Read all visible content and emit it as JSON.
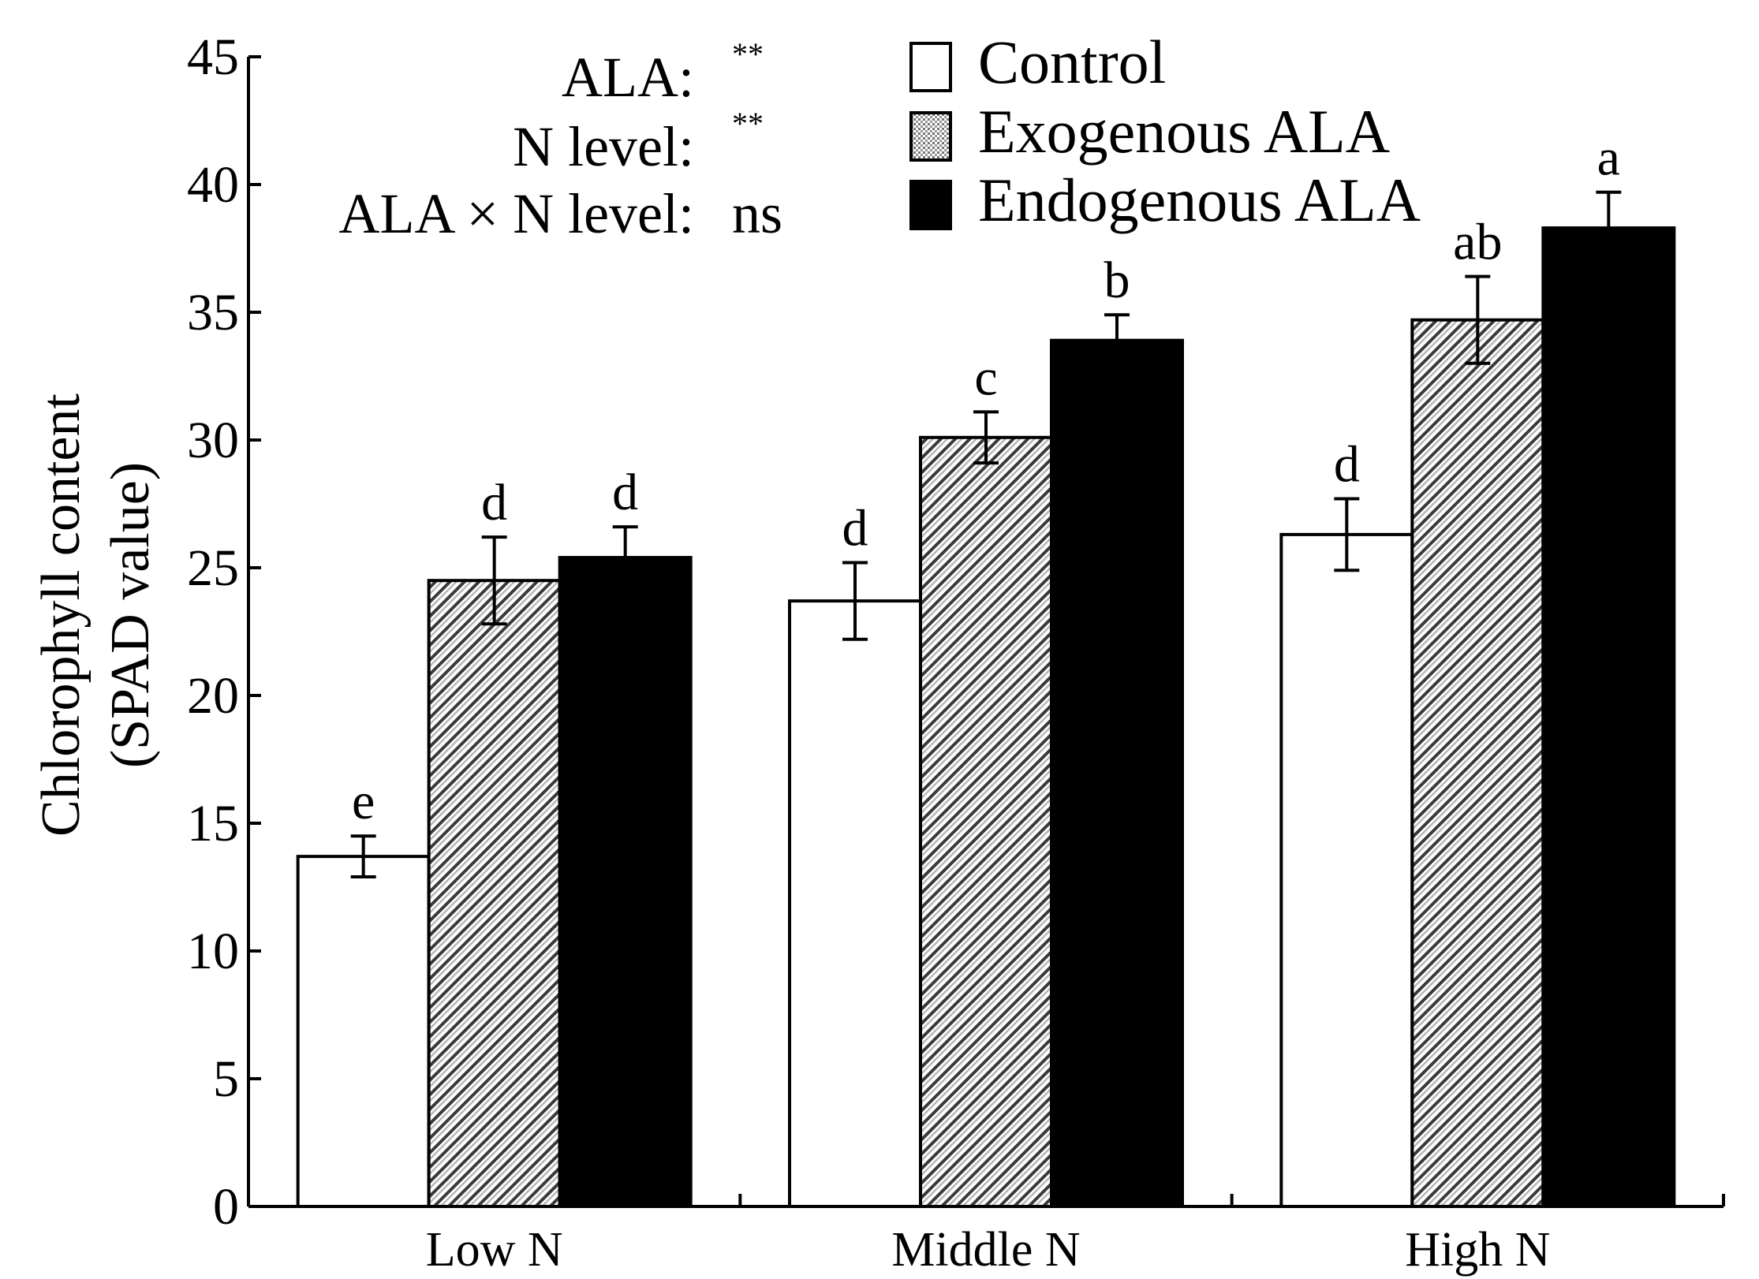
{
  "chart_data": {
    "type": "bar",
    "categories": [
      "Low N",
      "Middle N",
      "High N"
    ],
    "series": [
      {
        "name": "Control",
        "pattern": "open",
        "values": [
          13.7,
          23.7,
          26.3
        ],
        "errors": [
          0.8,
          1.5,
          1.4
        ],
        "letters": [
          "e",
          "d",
          "d"
        ]
      },
      {
        "name": "Exogenous ALA",
        "pattern": "hatched",
        "values": [
          24.5,
          30.1,
          34.7
        ],
        "errors": [
          1.7,
          1.0,
          1.7
        ],
        "letters": [
          "d",
          "c",
          "ab"
        ]
      },
      {
        "name": "Endogenous ALA",
        "pattern": "solid-black",
        "values": [
          25.4,
          33.9,
          38.3
        ],
        "errors": [
          1.2,
          1.0,
          1.4
        ],
        "letters": [
          "d",
          "b",
          "a"
        ]
      }
    ],
    "ylabel_line1": "Chlorophyll content",
    "ylabel_line2": "(SPAD value)",
    "xlabel": "",
    "ylim": [
      0,
      45
    ],
    "yticks": [
      0,
      5,
      10,
      15,
      20,
      25,
      30,
      35,
      40,
      45
    ],
    "grid": false,
    "legend_position": "top-center",
    "annotations": [
      {
        "label": "ALA:",
        "value": "**"
      },
      {
        "label": "N level:",
        "value": "**"
      },
      {
        "label": "ALA × N level:",
        "value": "ns"
      }
    ]
  }
}
